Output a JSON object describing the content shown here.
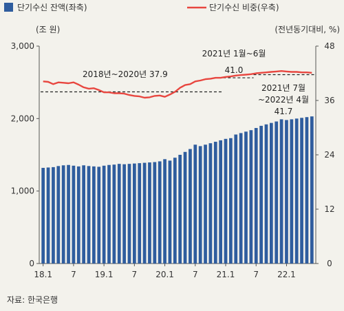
{
  "chart_data": {
    "type": "bar+line",
    "legend": [
      {
        "name": "단기수신 잔액(좌축)",
        "color": "#2f5d9e",
        "kind": "bar"
      },
      {
        "name": "단기수신 비중(우축)",
        "color": "#e8463f",
        "kind": "line"
      }
    ],
    "left_unit": "(조 원)",
    "right_unit": "(전년동기대비, %)",
    "left_axis": {
      "min": 0,
      "max": 3000,
      "ticks": [
        0,
        1000,
        2000,
        3000
      ],
      "tick_labels": [
        "0",
        "1,000",
        "2,000",
        "3,000"
      ]
    },
    "right_axis": {
      "min": 0,
      "max": 48,
      "ticks": [
        0,
        12,
        24,
        36,
        48
      ],
      "tick_labels": [
        "0",
        "12",
        "24",
        "36",
        "48"
      ]
    },
    "x_ticks": [
      {
        "label": "18.1",
        "index": 0
      },
      {
        "label": "7",
        "index": 6
      },
      {
        "label": "19.1",
        "index": 12
      },
      {
        "label": "7",
        "index": 18
      },
      {
        "label": "20.1",
        "index": 24
      },
      {
        "label": "7",
        "index": 30
      },
      {
        "label": "21.1",
        "index": 36
      },
      {
        "label": "7",
        "index": 42
      },
      {
        "label": "22.1",
        "index": 48
      }
    ],
    "bars": [
      1320,
      1325,
      1330,
      1345,
      1355,
      1360,
      1350,
      1340,
      1355,
      1345,
      1340,
      1335,
      1350,
      1360,
      1365,
      1375,
      1370,
      1375,
      1380,
      1385,
      1390,
      1395,
      1400,
      1410,
      1440,
      1420,
      1460,
      1500,
      1540,
      1580,
      1640,
      1620,
      1640,
      1660,
      1680,
      1700,
      1720,
      1730,
      1780,
      1800,
      1820,
      1840,
      1870,
      1900,
      1920,
      1940,
      1960,
      1990,
      1980,
      1990,
      2000,
      2010,
      2020,
      2030
    ],
    "line": [
      40.2,
      40.1,
      39.6,
      40.0,
      39.9,
      39.8,
      40.0,
      39.5,
      38.9,
      38.6,
      38.7,
      38.3,
      37.8,
      37.8,
      37.6,
      37.6,
      37.5,
      37.2,
      37.0,
      36.9,
      36.6,
      36.7,
      37.0,
      37.1,
      36.8,
      37.3,
      37.9,
      38.8,
      39.4,
      39.6,
      40.2,
      40.4,
      40.7,
      40.8,
      41.0,
      41.0,
      41.2,
      41.3,
      41.5,
      41.6,
      41.7,
      41.8,
      42.0,
      42.1,
      42.2,
      42.3,
      42.4,
      42.5,
      42.4,
      42.3,
      42.3,
      42.2,
      42.2,
      42.1
    ],
    "reference_lines": [
      {
        "label": "2018년~2020년 37.9",
        "value": 37.9,
        "from_index": 0,
        "to_index": 35
      },
      {
        "label_line1": "2021년 1월~6월",
        "label_line2": "41.0",
        "value": 41.0,
        "from_index": 36,
        "to_index": 41
      },
      {
        "label_line1": "2021년 7월",
        "label_line2": "~2022년 4월",
        "label_line3": "41.7",
        "value": 41.7,
        "from_index": 42,
        "to_index": 53
      }
    ],
    "source": "자료: 한국은행"
  }
}
